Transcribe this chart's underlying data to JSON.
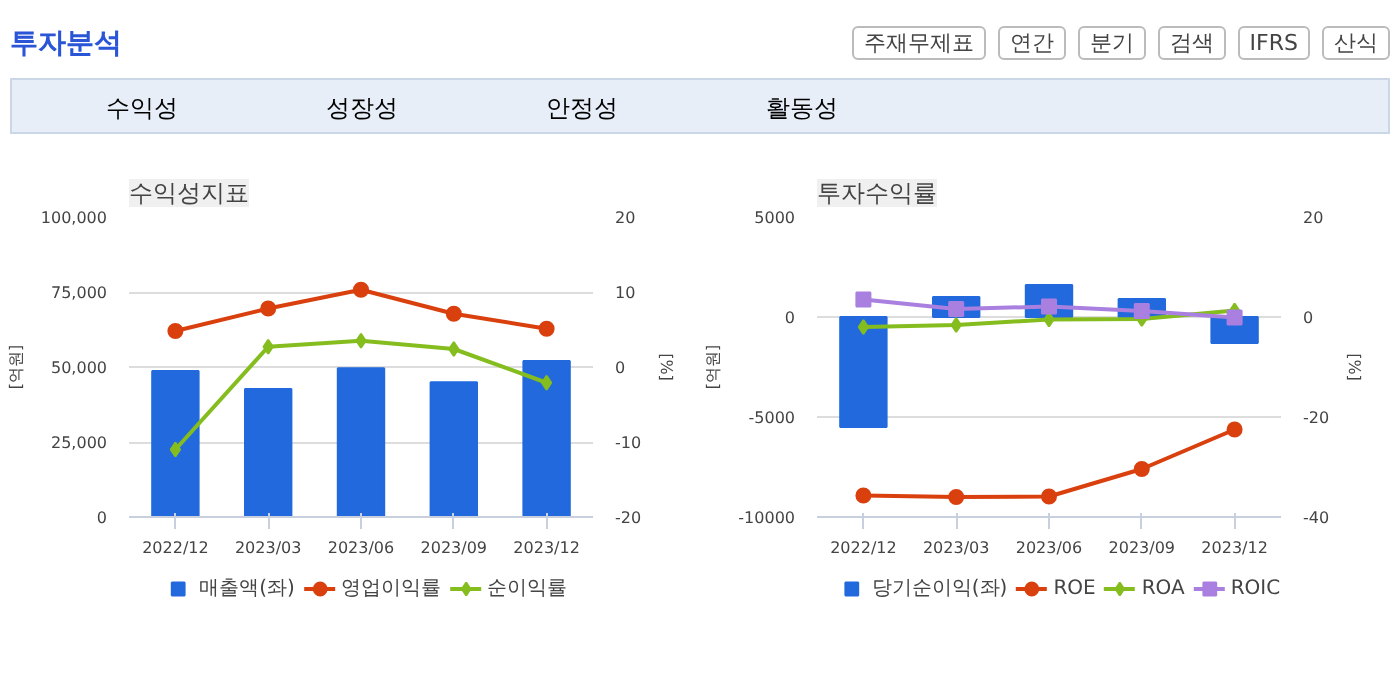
{
  "chart_data": [
    {
      "type": "other",
      "title": "투자분석",
      "annotations": [
        "주재무제표",
        "연간",
        "분기",
        "검색",
        "IFRS",
        "산식",
        "수익성",
        "성장성",
        "안정성",
        "활동성"
      ]
    },
    {
      "type": "bar",
      "title": "수익성지표",
      "ylabel": "[억원]",
      "y2label": "[%]",
      "categories": [
        "2022/12",
        "2023/03",
        "2023/06",
        "2023/09",
        "2023/12"
      ],
      "ylim": [
        0,
        100000
      ],
      "yticks": [
        0,
        {
          "value": 25000,
          "label": "25,000"
        },
        {
          "value": 50000,
          "label": "50,000"
        },
        {
          "value": 75000,
          "label": "75,000"
        },
        {
          "value": 100000,
          "label": "100,000"
        }
      ],
      "y2lim": [
        -20,
        20
      ],
      "y2ticks": [
        -20,
        -10,
        0,
        10,
        20
      ],
      "grid": "y",
      "legend": "bottom",
      "series": [
        {
          "name": "매출액(좌)",
          "color": "#2169dd",
          "values": [
            48700,
            42700,
            49600,
            44900,
            52000
          ]
        },
        {
          "name": "영업이익률",
          "type": "line",
          "axis": "y2",
          "marker": "circle",
          "color": "#d9400e",
          "values": [
            4.8,
            7.8,
            10.3,
            7.1,
            5.1
          ]
        },
        {
          "name": "순이익률",
          "type": "line",
          "axis": "y2",
          "marker": "diamond",
          "color": "#85bd1f",
          "values": [
            -11.0,
            2.7,
            3.5,
            2.4,
            -2.1
          ]
        }
      ]
    },
    {
      "type": "bar",
      "title": "투자수익률",
      "ylabel": "[억원]",
      "y2label": "[%]",
      "categories": [
        "2022/12",
        "2023/03",
        "2023/06",
        "2023/09",
        "2023/12"
      ],
      "ylim": [
        -10000,
        5000
      ],
      "yticks": [
        -10000,
        -5000,
        0,
        5000
      ],
      "y2lim": [
        -40,
        20
      ],
      "y2ticks": [
        -40,
        -20,
        0,
        20
      ],
      "grid": "y",
      "legend": "bottom",
      "series": [
        {
          "name": "당기순이익(좌)",
          "color": "#2169dd",
          "values": [
            -5500,
            1000,
            1600,
            900,
            -1300
          ]
        },
        {
          "name": "ROE",
          "type": "line",
          "axis": "y2",
          "marker": "circle",
          "color": "#d9400e",
          "values": [
            -35.7,
            -36.0,
            -35.9,
            -30.4,
            -22.5
          ]
        },
        {
          "name": "ROA",
          "type": "line",
          "axis": "y2",
          "marker": "diamond",
          "color": "#85bd1f",
          "values": [
            -2.0,
            -1.6,
            -0.5,
            -0.4,
            1.3
          ]
        },
        {
          "name": "ROIC",
          "type": "line",
          "axis": "y2",
          "marker": "square",
          "color": "#a97fe0",
          "values": [
            3.5,
            1.6,
            2.1,
            1.2,
            -0.1
          ]
        }
      ]
    }
  ]
}
